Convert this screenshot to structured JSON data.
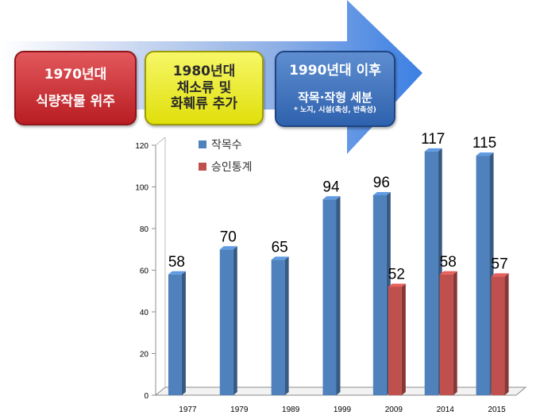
{
  "banner": {
    "era1": {
      "title": "1970년대",
      "body": "식량작물 위주"
    },
    "era2": {
      "title": "1980년대",
      "line1": "채소류 및",
      "line2": "화훼류 추가"
    },
    "era3": {
      "title": "1990년대 이후",
      "body": "작목·작형 세분",
      "note": "* 노지, 시설(촉성, 반촉성)"
    }
  },
  "chart_data": {
    "type": "bar",
    "categories": [
      "1977",
      "1979",
      "1989",
      "1999",
      "2009",
      "2014",
      "2015"
    ],
    "series": [
      {
        "name": "작목수",
        "color": "#4f81bd",
        "values": [
          58,
          70,
          65,
          94,
          96,
          117,
          115
        ]
      },
      {
        "name": "승인통계",
        "color": "#c0504d",
        "values": [
          null,
          null,
          null,
          null,
          52,
          58,
          57
        ]
      }
    ],
    "ylim": [
      0,
      120
    ],
    "yticks": [
      0,
      20,
      40,
      60,
      80,
      100,
      120
    ],
    "legend_position": "top-left",
    "grid": false,
    "style": "3d"
  }
}
